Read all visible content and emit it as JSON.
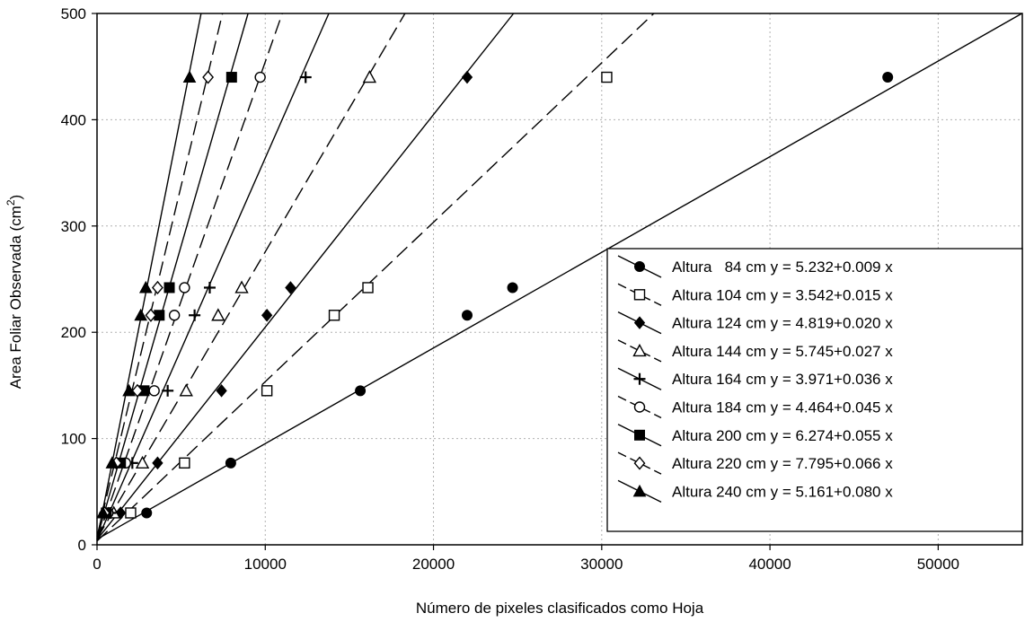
{
  "chart_data": {
    "type": "scatter",
    "xlabel": "Número de pixeles clasificados como Hoja",
    "ylabel": "Area Foliar Observada (cm",
    "ylabel_superscript": "2",
    "ylabel_suffix": ")",
    "xlim": [
      0,
      55000
    ],
    "ylim": [
      0,
      500
    ],
    "x_ticks": [
      0,
      10000,
      20000,
      30000,
      40000,
      50000
    ],
    "y_ticks": [
      0,
      100,
      200,
      300,
      400,
      500
    ],
    "grid": true,
    "legend_position": "bottom-right",
    "series": [
      {
        "name": "Altura   84 cm y = 5.232+0.009 x",
        "marker": "circle",
        "line": "solid",
        "intercept": 5.232,
        "slope": 0.009,
        "x": [
          2950,
          7950,
          15650,
          22000,
          24700,
          47000
        ],
        "y": [
          30,
          77,
          145,
          216,
          242,
          440
        ]
      },
      {
        "name": "Altura 104 cm y = 3.542+0.015 x",
        "marker": "square-open",
        "line": "dashed",
        "intercept": 3.542,
        "slope": 0.015,
        "x": [
          2000,
          5200,
          10100,
          14100,
          16100,
          30300
        ],
        "y": [
          30,
          77,
          145,
          216,
          242,
          440
        ]
      },
      {
        "name": "Altura 124 cm y = 4.819+0.020 x",
        "marker": "diamond",
        "line": "solid",
        "intercept": 4.819,
        "slope": 0.02,
        "x": [
          1400,
          3600,
          7400,
          10100,
          11500,
          22000
        ],
        "y": [
          30,
          77,
          145,
          216,
          242,
          440
        ]
      },
      {
        "name": "Altura 144 cm y = 5.745+0.027 x",
        "marker": "triangle-open",
        "line": "dashed",
        "intercept": 5.745,
        "slope": 0.027,
        "x": [
          1000,
          2700,
          5300,
          7200,
          8600,
          16200
        ],
        "y": [
          30,
          77,
          145,
          216,
          242,
          440
        ]
      },
      {
        "name": "Altura 164 cm y = 3.971+0.036 x",
        "marker": "plus",
        "line": "solid",
        "intercept": 3.971,
        "slope": 0.036,
        "x": [
          800,
          2100,
          4200,
          5800,
          6700,
          12400
        ],
        "y": [
          30,
          77,
          145,
          216,
          242,
          440
        ]
      },
      {
        "name": "Altura 184 cm y = 4.464+0.045 x",
        "marker": "circle-open",
        "line": "dashed",
        "intercept": 4.464,
        "slope": 0.045,
        "x": [
          650,
          1700,
          3400,
          4600,
          5200,
          9700
        ],
        "y": [
          30,
          77,
          145,
          216,
          242,
          440
        ]
      },
      {
        "name": "Altura 200 cm y = 6.274+0.055 x",
        "marker": "square",
        "line": "solid",
        "intercept": 6.274,
        "slope": 0.055,
        "x": [
          550,
          1400,
          2800,
          3700,
          4300,
          8000
        ],
        "y": [
          30,
          77,
          145,
          216,
          242,
          440
        ]
      },
      {
        "name": "Altura 220 cm y = 7.795+0.066 x",
        "marker": "diamond-open",
        "line": "dashed",
        "intercept": 7.795,
        "slope": 0.066,
        "x": [
          450,
          1150,
          2400,
          3200,
          3600,
          6600
        ],
        "y": [
          30,
          77,
          145,
          216,
          242,
          440
        ]
      },
      {
        "name": "Altura 240 cm y = 5.161+0.080 x",
        "marker": "triangle",
        "line": "solid",
        "intercept": 5.161,
        "slope": 0.08,
        "x": [
          350,
          900,
          1900,
          2600,
          2900,
          5500
        ],
        "y": [
          30,
          77,
          145,
          216,
          242,
          440
        ]
      }
    ]
  }
}
